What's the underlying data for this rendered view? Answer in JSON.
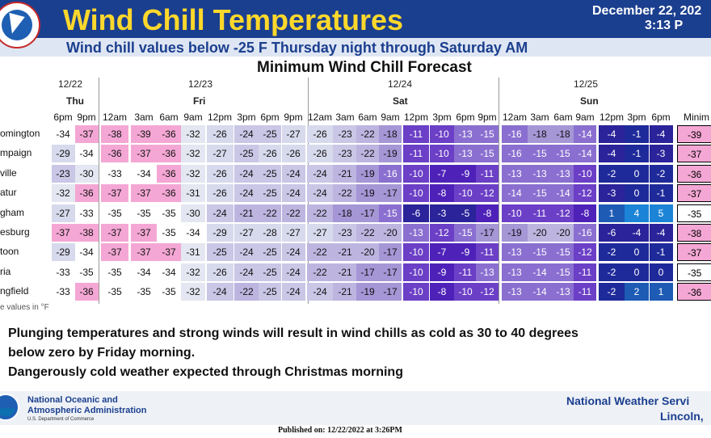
{
  "header": {
    "title": "Wind Chill Temperatures",
    "date": "December 22, 202",
    "time": "3:13 P",
    "subtitle": "Wind chill values below -25 F Thursday night through Saturday AM",
    "logo_text": "WEATHER SERVICE"
  },
  "chart_title": "Minimum Wind Chill Forecast",
  "days": [
    {
      "date": "12/22",
      "name": "Thu"
    },
    {
      "date": "12/23",
      "name": "Fri"
    },
    {
      "date": "12/24",
      "name": "Sat"
    },
    {
      "date": "12/25",
      "name": "Sun"
    }
  ],
  "hours": [
    "6pm",
    "9pm",
    "12am",
    "3am",
    "6am",
    "9am",
    "12pm",
    "3pm",
    "6pm",
    "9pm",
    "12am",
    "3am",
    "6am",
    "9am",
    "12pm",
    "3pm",
    "6pm",
    "9pm",
    "12am",
    "3am",
    "6am",
    "9am",
    "12pm",
    "3pm",
    "6pm"
  ],
  "min_header": "Minim",
  "rows": [
    {
      "name": "omington",
      "values": [
        -34,
        -37,
        -38,
        -39,
        -36,
        -32,
        -26,
        -24,
        -25,
        -27,
        -26,
        -23,
        -22,
        -18,
        -11,
        -10,
        -13,
        -15,
        -16,
        -18,
        -18,
        -14,
        -4,
        -1,
        -4
      ],
      "min": "-39"
    },
    {
      "name": "mpaign",
      "values": [
        -29,
        -34,
        -36,
        -37,
        -36,
        -32,
        -27,
        -25,
        -26,
        -26,
        -26,
        -23,
        -22,
        -19,
        -11,
        -10,
        -13,
        -15,
        -16,
        -15,
        -15,
        -14,
        -4,
        -1,
        -3
      ],
      "min": "-37"
    },
    {
      "name": "ville",
      "values": [
        -23,
        -30,
        -33,
        -34,
        -36,
        -32,
        -26,
        -24,
        -25,
        -24,
        -24,
        -21,
        -19,
        -16,
        -10,
        -7,
        -9,
        -11,
        -13,
        -13,
        -13,
        -10,
        -2,
        0,
        -2
      ],
      "min": "-36"
    },
    {
      "name": "atur",
      "values": [
        -32,
        -36,
        -37,
        -37,
        -36,
        -31,
        -26,
        -24,
        -25,
        -24,
        -24,
        -22,
        -19,
        -17,
        -10,
        -8,
        -10,
        -12,
        -14,
        -15,
        -14,
        -12,
        -3,
        0,
        -1
      ],
      "min": "-37"
    },
    {
      "name": "gham",
      "values": [
        -27,
        -33,
        -35,
        -35,
        -35,
        -30,
        -24,
        -21,
        -22,
        -22,
        -22,
        -18,
        -17,
        -15,
        -6,
        -3,
        -5,
        -8,
        -10,
        -11,
        -12,
        -8,
        1,
        4,
        5
      ],
      "min": "-35"
    },
    {
      "name": "esburg",
      "values": [
        -37,
        -38,
        -37,
        -37,
        -35,
        -34,
        -29,
        -27,
        -28,
        -27,
        -27,
        -23,
        -22,
        -20,
        -13,
        -12,
        -15,
        -17,
        -19,
        -20,
        -20,
        -16,
        -6,
        -4,
        -4
      ],
      "min": "-38"
    },
    {
      "name": "toon",
      "values": [
        -29,
        -34,
        -37,
        -37,
        -37,
        -31,
        -25,
        -24,
        -25,
        -24,
        -22,
        -21,
        -20,
        -17,
        -10,
        -7,
        -9,
        -11,
        -13,
        -15,
        -15,
        -12,
        -2,
        0,
        -1
      ],
      "min": "-37"
    },
    {
      "name": "ria",
      "values": [
        -33,
        -35,
        -35,
        -34,
        -34,
        -32,
        -26,
        -24,
        -25,
        -24,
        -22,
        -21,
        -17,
        -17,
        -10,
        -9,
        -11,
        -13,
        -13,
        -14,
        -15,
        -11,
        -2,
        0,
        0
      ],
      "min": "-35"
    },
    {
      "name": "ngfield",
      "values": [
        -33,
        -36,
        -35,
        -35,
        -35,
        -32,
        -24,
        -22,
        -25,
        -24,
        -24,
        -21,
        -19,
        -17,
        -10,
        -8,
        -10,
        -12,
        -13,
        -14,
        -13,
        -11,
        -2,
        2,
        1
      ],
      "min": "-36"
    }
  ],
  "values_note": "e values in °F",
  "bullets": [
    "Plunging temperatures and strong winds will result in wind chills as cold as 30 to 40 degrees",
    "below zero by Friday morning.",
    "Dangerously cold weather expected through Christmas morning"
  ],
  "footer": {
    "noaa_line1": "National Oceanic and",
    "noaa_line2": "Atmospheric Administration",
    "noaa_dept": "U.S. Department of Commerce",
    "nws_name": "National Weather Servi",
    "nws_office": "Lincoln,",
    "noaa_logo_text": "NOAA"
  },
  "published": "Published on: 12/22/2022 at 3:26PM",
  "colors": {
    "header_blue": "#1b3f8f",
    "title_yellow": "#ffd82b",
    "pink": "#f5a9d6",
    "dark_navy": "#1a1a8c"
  }
}
